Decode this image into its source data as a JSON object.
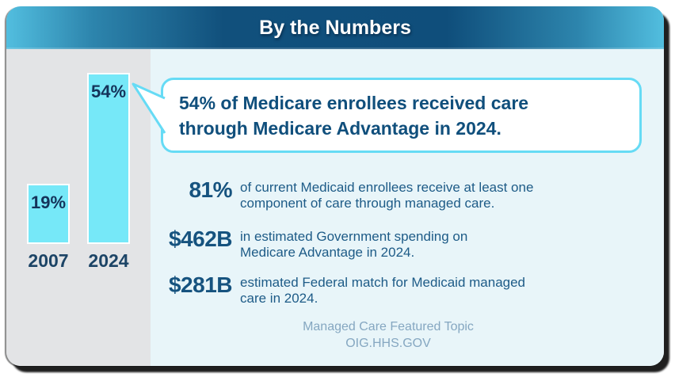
{
  "header": {
    "title": "By the Numbers"
  },
  "chart_data": {
    "type": "bar",
    "categories": [
      "2007",
      "2024"
    ],
    "values": [
      19,
      54
    ],
    "value_labels": [
      "19%",
      "54%"
    ],
    "unit": "percent",
    "bar_color": "#76e8f8",
    "axes_shown": false,
    "grid": false,
    "legend": "none"
  },
  "callout": {
    "text": "54% of Medicare enrollees received care through Medicare Advantage in 2024.",
    "lines": [
      "54% of Medicare enrollees received care",
      "through Medicare Advantage in 2024."
    ]
  },
  "stats": [
    {
      "value": "81%",
      "description": "of current Medicaid enrollees receive at least one component of care through managed care.",
      "lines": [
        "of current Medicaid enrollees receive at least one",
        "component of care through managed care."
      ]
    },
    {
      "value": "$462B",
      "description": "in estimated Government spending on Medicare Advantage in 2024.",
      "lines": [
        "in estimated Government spending on",
        "Medicare Advantage in 2024."
      ]
    },
    {
      "value": "$281B",
      "description": "estimated Federal match for Medicaid managed care in 2024.",
      "lines": [
        "estimated Federal match for Medicaid managed",
        "care in 2024."
      ]
    }
  ],
  "footer": {
    "line1": "Managed Care Featured Topic",
    "line2": "OIG.HHS.GOV"
  },
  "colors": {
    "header_dark": "#11507c",
    "header_light": "#52bedf",
    "bar_fill": "#76e8f8",
    "bubble_border": "#66dbf5",
    "dark_navy_text": "#14335a",
    "stat_text": "#1d5b87",
    "footer_text": "#85a7c1",
    "left_panel_bg": "#e3e4e6",
    "right_panel_bg": "#e8f5f9"
  }
}
